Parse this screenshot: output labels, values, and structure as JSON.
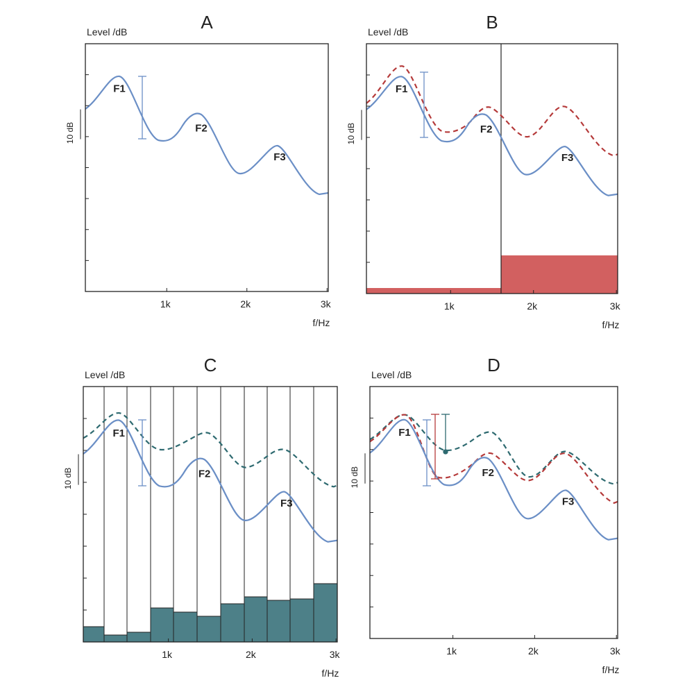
{
  "panels": [
    {
      "letter": "A",
      "y_label": "Level /dB",
      "x_label": "f/Hz",
      "xticks": [
        "1k",
        "2k",
        "3k"
      ],
      "scale_label": "10 dB",
      "formants": [
        "F1",
        "F2",
        "F3"
      ]
    },
    {
      "letter": "B",
      "y_label": "Level /dB",
      "x_label": "f/Hz",
      "xticks": [
        "1k",
        "2k",
        "3k"
      ],
      "scale_label": "10 dB",
      "formants": [
        "F1",
        "F2",
        "F3"
      ]
    },
    {
      "letter": "C",
      "y_label": "Level /dB",
      "x_label": "f/Hz",
      "xticks": [
        "1k",
        "2k",
        "3k"
      ],
      "scale_label": "10 dB",
      "formants": [
        "F1",
        "F2",
        "F3"
      ]
    },
    {
      "letter": "D",
      "y_label": "Level /dB",
      "x_label": "f/Hz",
      "xticks": [
        "1k",
        "2k",
        "3k"
      ],
      "scale_label": "10 dB",
      "formants": [
        "F1",
        "F2",
        "F3"
      ]
    }
  ]
}
